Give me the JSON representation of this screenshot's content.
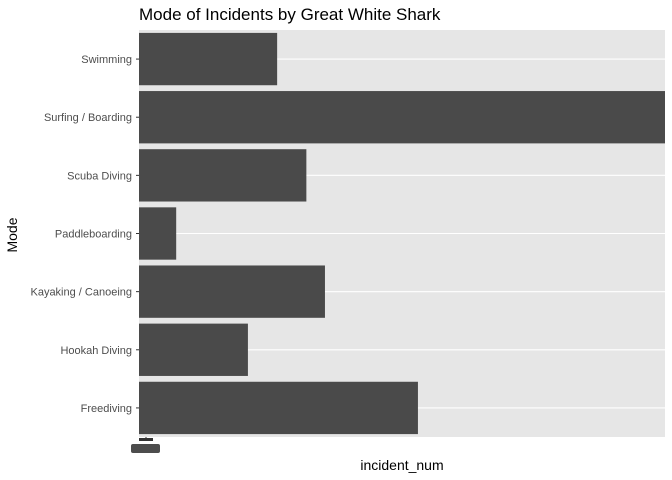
{
  "chart_data": {
    "type": "bar",
    "orientation": "horizontal",
    "title": "Mode of Incidents by Great White Shark",
    "xlabel": "incident_num",
    "ylabel": "Mode",
    "categories": [
      "Swimming",
      "Surfing / Boarding",
      "Scuba Diving",
      "Paddleboarding",
      "Kayaking / Canoeing",
      "Hookah Diving",
      "Freediving"
    ],
    "values": [
      26,
      99,
      31.5,
      7,
      35,
      20.5,
      52.5
    ],
    "xlim": [
      0,
      99
    ],
    "grid": true,
    "legend": "none",
    "colors": {
      "bar": "#4a4a4a",
      "panel": "#e6e6e6",
      "grid": "#ffffff"
    }
  }
}
